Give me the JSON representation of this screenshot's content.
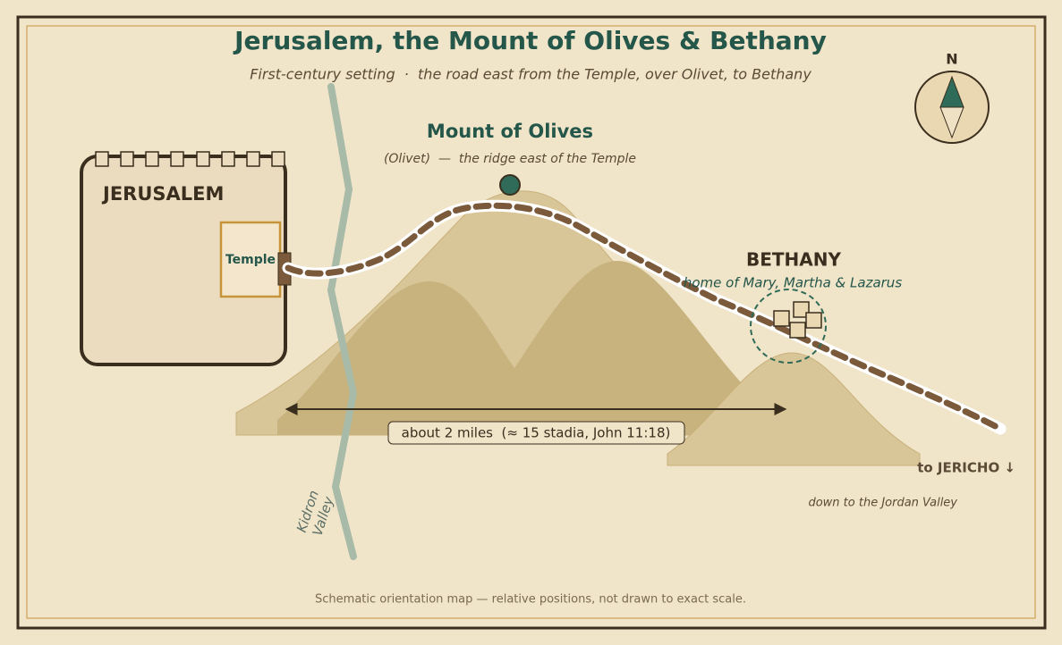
{
  "header": {
    "title": "Jerusalem, the Mount of Olives & Bethany",
    "subtitle": "First-century setting  ·  the road east from the Temple, over Olivet, to Bethany"
  },
  "compass": {
    "label": "N"
  },
  "mount_of_olives": {
    "name": "Mount of Olives",
    "note": "(Olivet)  —  the ridge east of the Temple"
  },
  "jerusalem": {
    "name": "JERUSALEM",
    "temple": "Temple"
  },
  "bethany": {
    "name": "BETHANY",
    "note": "home of Mary, Martha & Lazarus"
  },
  "distance": {
    "label": "about 2 miles  (≈ 15 stadia, John 11:18)"
  },
  "kidron": {
    "lines": [
      "Kidron",
      "Valley"
    ]
  },
  "jericho": {
    "label": "to JERICHO ↓",
    "note": "down to the Jordan Valley"
  },
  "footer": {
    "note": "Schematic orientation map — relative positions, not drawn to exact scale."
  }
}
